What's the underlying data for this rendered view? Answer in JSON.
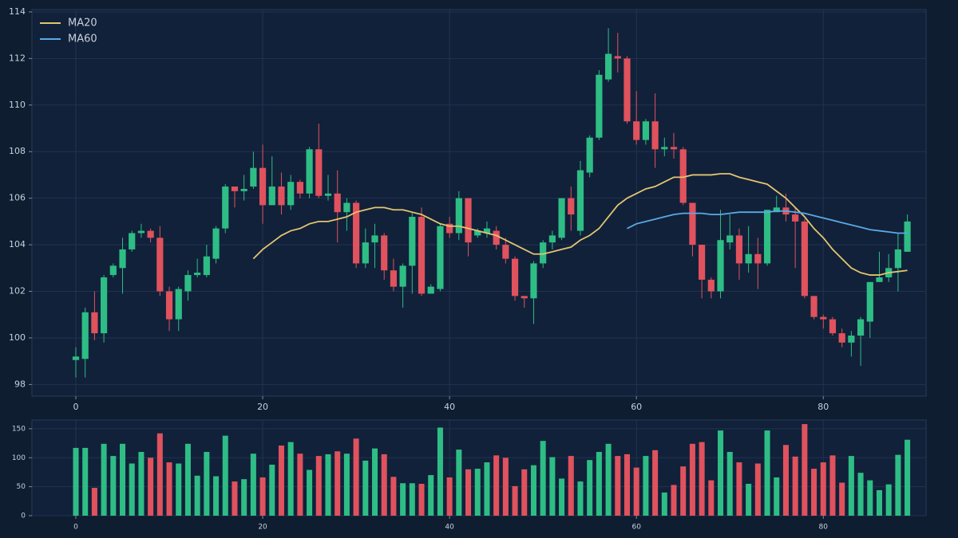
{
  "chart_data": [
    {
      "type": "candlestick",
      "x": [
        0,
        1,
        2,
        3,
        4,
        5,
        6,
        7,
        8,
        9,
        10,
        11,
        12,
        13,
        14,
        15,
        16,
        17,
        18,
        19,
        20,
        21,
        22,
        23,
        24,
        25,
        26,
        27,
        28,
        29,
        30,
        31,
        32,
        33,
        34,
        35,
        36,
        37,
        38,
        39,
        40,
        41,
        42,
        43,
        44,
        45,
        46,
        47,
        48,
        49,
        50,
        51,
        52,
        53,
        54,
        55,
        56,
        57,
        58,
        59,
        60,
        61,
        62,
        63,
        64,
        65,
        66,
        67,
        68,
        69,
        70,
        71,
        72,
        73,
        74,
        75,
        76,
        77,
        78,
        79,
        80,
        81,
        82,
        83,
        84,
        85,
        86,
        87,
        88,
        89
      ],
      "open": [
        99.05,
        99.1,
        101.1,
        100.2,
        102.7,
        103,
        103.8,
        104.5,
        104.6,
        104.3,
        102,
        100.8,
        102,
        102.7,
        102.7,
        103.4,
        104.7,
        106.5,
        106.3,
        106.5,
        107.3,
        105.7,
        106.5,
        105.7,
        106.7,
        106.2,
        108.1,
        106.1,
        106.2,
        105.4,
        105.8,
        103.2,
        104.1,
        104.4,
        102.9,
        102.2,
        103.1,
        105.2,
        101.9,
        102.1,
        104.9,
        104.5,
        106,
        104.4,
        104.5,
        104.6,
        104,
        103.4,
        101.8,
        101.7,
        103.2,
        104.1,
        104.3,
        106,
        104.6,
        107.1,
        108.6,
        111.1,
        112.1,
        112,
        109.3,
        108.5,
        109.3,
        108.1,
        108.2,
        108.1,
        105.8,
        104,
        102.5,
        102,
        104.1,
        104.4,
        103.2,
        103.6,
        103.2,
        105.4,
        105.6,
        105.3,
        105,
        101.8,
        100.9,
        100.8,
        100.2,
        99.8,
        100.1,
        100.7,
        102.4,
        102.6,
        103,
        103.7
      ],
      "high": [
        99.6,
        101.3,
        102,
        102.7,
        103.2,
        104.3,
        104.6,
        104.9,
        104.7,
        104.8,
        102.2,
        102.2,
        102.9,
        103.4,
        104,
        104.8,
        106.6,
        106.5,
        107,
        108,
        108.3,
        107.8,
        107.1,
        107,
        106.8,
        108.2,
        109.2,
        107,
        107.2,
        106,
        105.9,
        104.7,
        104.9,
        104.5,
        103.4,
        103.2,
        105.4,
        105.6,
        102.3,
        104.9,
        105.2,
        106.3,
        106,
        104.7,
        105,
        104.8,
        104.3,
        103.5,
        101.8,
        103.3,
        104.2,
        104.6,
        106,
        106.5,
        107.6,
        108.7,
        111.5,
        113.3,
        113.1,
        112.1,
        110.6,
        109.4,
        110.5,
        108.6,
        108.8,
        108.2,
        105.8,
        104,
        102.6,
        105.5,
        105.3,
        104.7,
        104.8,
        104.3,
        105.5,
        106.1,
        106.2,
        105.6,
        105.1,
        101.8,
        101,
        100.9,
        100.4,
        100.3,
        100.9,
        102.4,
        103.7,
        103.6,
        104.5,
        105.3
      ],
      "low": [
        98.3,
        98.3,
        99.9,
        99.8,
        102.6,
        101.9,
        103.7,
        104.3,
        104.1,
        101.8,
        100.3,
        100.3,
        101.6,
        102.6,
        102.6,
        103.2,
        104.5,
        105.6,
        105.9,
        106.4,
        104.9,
        105.7,
        105.3,
        105.5,
        106,
        106,
        106,
        105.9,
        104.1,
        104.6,
        103,
        103,
        103,
        102.5,
        102,
        101.3,
        101.9,
        101.8,
        101.9,
        102,
        104.3,
        104.2,
        103.5,
        104.3,
        104.3,
        103.8,
        103.2,
        101.6,
        101.3,
        100.6,
        103,
        103.8,
        104.2,
        104.6,
        104.4,
        106.9,
        108.5,
        111,
        111.4,
        109.2,
        108.3,
        108.3,
        107.3,
        107.8,
        107.7,
        105.7,
        103.5,
        101.7,
        101.7,
        101.7,
        103.8,
        102.5,
        102.8,
        102.1,
        103.1,
        105.4,
        105,
        103,
        101.7,
        100.8,
        100.4,
        100.1,
        99.6,
        99.2,
        98.8,
        100,
        102.4,
        102.4,
        102,
        103.7
      ],
      "close": [
        99.2,
        101.1,
        100.2,
        102.6,
        103.1,
        103.8,
        104.5,
        104.6,
        104.3,
        102,
        100.8,
        102.1,
        102.7,
        102.8,
        103.5,
        104.7,
        106.5,
        106.3,
        106.4,
        107.3,
        105.7,
        106.5,
        105.7,
        106.7,
        106.2,
        108.1,
        106.1,
        106.2,
        105.4,
        105.8,
        103.2,
        104.1,
        104.4,
        102.9,
        102.2,
        103.1,
        105.2,
        101.9,
        102.2,
        104.8,
        104.5,
        106,
        104.1,
        104.6,
        104.7,
        104,
        103.4,
        101.8,
        101.7,
        103.2,
        104.1,
        104.4,
        106,
        105.3,
        107.2,
        108.6,
        111.3,
        112.2,
        112,
        109.3,
        108.5,
        109.3,
        108.1,
        108.2,
        108.1,
        105.8,
        104,
        102.5,
        102,
        104.2,
        104.4,
        103.2,
        103.6,
        103.2,
        105.5,
        105.6,
        105.3,
        105,
        101.8,
        100.9,
        100.8,
        100.2,
        99.8,
        100.1,
        100.8,
        102.4,
        102.6,
        103,
        103.8,
        105
      ],
      "up_color": "#2ebd85",
      "down_color": "#e0525d",
      "series": [
        {
          "name": "MA20",
          "color": "#e3c56f",
          "values": [
            null,
            null,
            null,
            null,
            null,
            null,
            null,
            null,
            null,
            null,
            null,
            null,
            null,
            null,
            null,
            null,
            null,
            null,
            null,
            103.4,
            103.8,
            104.1,
            104.4,
            104.6,
            104.7,
            104.9,
            105,
            105,
            105.1,
            105.2,
            105.4,
            105.5,
            105.6,
            105.6,
            105.5,
            105.5,
            105.4,
            105.3,
            105.1,
            104.9,
            104.8,
            104.8,
            104.7,
            104.6,
            104.5,
            104.4,
            104.2,
            104,
            103.8,
            103.6,
            103.6,
            103.7,
            103.8,
            103.9,
            104.2,
            104.4,
            104.7,
            105.2,
            105.7,
            106,
            106.2,
            106.4,
            106.5,
            106.7,
            106.9,
            106.9,
            107,
            107,
            107,
            107.05,
            107.05,
            106.9,
            106.8,
            106.7,
            106.6,
            106.3,
            106,
            105.6,
            105.2,
            104.7,
            104.3,
            103.8,
            103.4,
            103,
            102.8,
            102.7,
            102.7,
            102.8,
            102.85,
            102.9
          ]
        },
        {
          "name": "MA60",
          "color": "#5aa9e6",
          "values": [
            null,
            null,
            null,
            null,
            null,
            null,
            null,
            null,
            null,
            null,
            null,
            null,
            null,
            null,
            null,
            null,
            null,
            null,
            null,
            null,
            null,
            null,
            null,
            null,
            null,
            null,
            null,
            null,
            null,
            null,
            null,
            null,
            null,
            null,
            null,
            null,
            null,
            null,
            null,
            null,
            null,
            null,
            null,
            null,
            null,
            null,
            null,
            null,
            null,
            null,
            null,
            null,
            null,
            null,
            null,
            null,
            null,
            null,
            null,
            104.7,
            104.9,
            105,
            105.1,
            105.2,
            105.3,
            105.35,
            105.35,
            105.35,
            105.3,
            105.3,
            105.35,
            105.4,
            105.4,
            105.4,
            105.4,
            105.45,
            105.45,
            105.4,
            105.35,
            105.25,
            105.15,
            105.05,
            104.95,
            104.85,
            104.75,
            104.65,
            104.6,
            104.55,
            104.5,
            104.5
          ]
        }
      ],
      "xlim": [
        -4.7,
        91
      ],
      "xticks": [
        0,
        20,
        40,
        60,
        80
      ],
      "ylim": [
        97.5,
        114.1
      ],
      "yticks": [
        98,
        100,
        102,
        104,
        106,
        108,
        110,
        112,
        114
      ],
      "grid": true,
      "legend": "upper-left"
    },
    {
      "type": "bar",
      "x": [
        0,
        1,
        2,
        3,
        4,
        5,
        6,
        7,
        8,
        9,
        10,
        11,
        12,
        13,
        14,
        15,
        16,
        17,
        18,
        19,
        20,
        21,
        22,
        23,
        24,
        25,
        26,
        27,
        28,
        29,
        30,
        31,
        32,
        33,
        34,
        35,
        36,
        37,
        38,
        39,
        40,
        41,
        42,
        43,
        44,
        45,
        46,
        47,
        48,
        49,
        50,
        51,
        52,
        53,
        54,
        55,
        56,
        57,
        58,
        59,
        60,
        61,
        62,
        63,
        64,
        65,
        66,
        67,
        68,
        69,
        70,
        71,
        72,
        73,
        74,
        75,
        76,
        77,
        78,
        79,
        80,
        81,
        82,
        83,
        84,
        85,
        86,
        87,
        88,
        89
      ],
      "values": [
        117,
        117,
        48,
        124,
        103,
        124,
        90,
        110,
        100,
        142,
        92,
        90,
        124,
        69,
        110,
        68,
        138,
        59,
        63,
        107,
        66,
        88,
        121,
        127,
        107,
        79,
        103,
        106,
        111,
        107,
        133,
        95,
        116,
        106,
        67,
        56,
        56,
        55,
        70,
        152,
        66,
        114,
        80,
        81,
        92,
        104,
        100,
        51,
        80,
        87,
        129,
        101,
        64,
        103,
        59,
        96,
        110,
        124,
        103,
        106,
        83,
        103,
        113,
        40,
        53,
        85,
        124,
        127,
        61,
        147,
        110,
        92,
        55,
        90,
        147,
        66,
        122,
        102,
        158,
        81,
        92,
        104,
        57,
        103,
        74,
        61,
        44,
        54,
        105,
        131
      ],
      "xlim": [
        -4.7,
        91
      ],
      "xticks": [
        0,
        20,
        40,
        60,
        80
      ],
      "ylim": [
        0,
        165
      ],
      "yticks": [
        0,
        50,
        100,
        150
      ],
      "grid": true
    }
  ]
}
